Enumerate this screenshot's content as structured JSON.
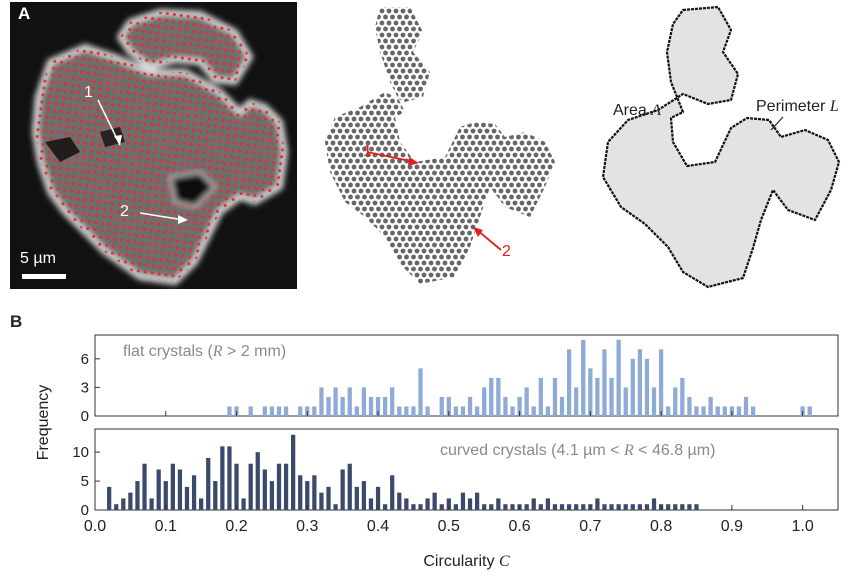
{
  "panel_a": {
    "letter": "A",
    "scalebar_label": "5 µm",
    "marker_1": "1",
    "marker_2": "2",
    "area_label": "Area",
    "area_symbol": "A",
    "perimeter_label": "Perimeter",
    "perimeter_symbol": "L"
  },
  "panel_b": {
    "letter": "B"
  },
  "colors": {
    "flat": "#8eaad6",
    "curved": "#3b4a6b",
    "marker_red": "#e02020",
    "shape_fill": "#e3e3e3"
  },
  "chart_data": [
    {
      "type": "bar",
      "legend_text_prefix": "flat crystals (",
      "legend_symbol": "R",
      "legend_text_suffix": " > 2 mm)",
      "xlim": [
        0,
        1.05
      ],
      "ylim": [
        0,
        8.5
      ],
      "yticks": [
        0,
        3,
        6
      ],
      "x": [
        0.19,
        0.2,
        0.22,
        0.24,
        0.25,
        0.26,
        0.27,
        0.29,
        0.3,
        0.31,
        0.32,
        0.33,
        0.34,
        0.35,
        0.36,
        0.37,
        0.38,
        0.39,
        0.4,
        0.41,
        0.42,
        0.43,
        0.44,
        0.45,
        0.46,
        0.47,
        0.49,
        0.5,
        0.51,
        0.52,
        0.53,
        0.54,
        0.55,
        0.56,
        0.57,
        0.58,
        0.59,
        0.6,
        0.61,
        0.62,
        0.63,
        0.64,
        0.65,
        0.66,
        0.67,
        0.68,
        0.69,
        0.7,
        0.71,
        0.72,
        0.73,
        0.74,
        0.75,
        0.76,
        0.77,
        0.78,
        0.79,
        0.8,
        0.81,
        0.82,
        0.83,
        0.84,
        0.85,
        0.86,
        0.87,
        0.88,
        0.89,
        0.9,
        0.91,
        0.92,
        0.93,
        1.0,
        1.01
      ],
      "values": [
        1,
        1,
        1,
        1,
        1,
        1,
        1,
        1,
        1,
        1,
        3,
        2,
        3,
        2,
        3,
        1,
        3,
        2,
        2,
        2,
        3,
        1,
        1,
        1,
        5,
        1,
        2,
        2,
        1,
        1,
        2,
        1,
        3,
        4,
        4,
        2,
        1,
        2,
        3,
        1,
        4,
        1,
        4,
        2,
        7,
        3,
        8,
        5,
        4,
        7,
        4,
        8,
        3,
        6,
        7,
        6,
        3,
        7,
        1,
        3,
        4,
        2,
        1,
        1,
        2,
        1,
        1,
        1,
        1,
        2,
        1,
        1,
        1
      ]
    },
    {
      "type": "bar",
      "legend_text_prefix": "curved crystals (4.1 µm < ",
      "legend_symbol": "R",
      "legend_text_suffix": " < 46.8 µm)",
      "xlim": [
        0,
        1.05
      ],
      "ylim": [
        0,
        14
      ],
      "yticks": [
        0,
        5,
        10
      ],
      "xticks": [
        "0.0",
        "0.1",
        "0.2",
        "0.3",
        "0.4",
        "0.5",
        "0.6",
        "0.7",
        "0.8",
        "0.9",
        "1.0"
      ],
      "xlabel": "Circularity",
      "xlabel_symbol": "C",
      "ylabel": "Frequency",
      "x": [
        0.02,
        0.03,
        0.04,
        0.05,
        0.06,
        0.07,
        0.08,
        0.09,
        0.1,
        0.11,
        0.12,
        0.13,
        0.14,
        0.15,
        0.16,
        0.17,
        0.18,
        0.19,
        0.2,
        0.21,
        0.22,
        0.23,
        0.24,
        0.25,
        0.26,
        0.27,
        0.28,
        0.29,
        0.3,
        0.31,
        0.32,
        0.33,
        0.34,
        0.35,
        0.36,
        0.37,
        0.38,
        0.39,
        0.4,
        0.41,
        0.42,
        0.43,
        0.44,
        0.45,
        0.46,
        0.47,
        0.48,
        0.49,
        0.5,
        0.51,
        0.52,
        0.53,
        0.54,
        0.55,
        0.56,
        0.57,
        0.58,
        0.59,
        0.6,
        0.61,
        0.62,
        0.63,
        0.64,
        0.65,
        0.66,
        0.67,
        0.68,
        0.69,
        0.7,
        0.71,
        0.72,
        0.73,
        0.74,
        0.75,
        0.76,
        0.77,
        0.78,
        0.79,
        0.8,
        0.81,
        0.82,
        0.83,
        0.84,
        0.85
      ],
      "values": [
        4,
        1,
        2,
        3,
        5,
        8,
        2,
        7,
        5,
        8,
        7,
        4,
        6,
        2,
        9,
        5,
        11,
        11,
        8,
        2,
        8,
        10,
        7,
        5,
        8,
        8,
        13,
        6,
        5,
        6,
        3,
        4,
        1,
        7,
        8,
        4,
        5,
        2,
        4,
        1,
        6,
        3,
        2,
        1,
        1,
        2,
        3,
        1,
        2,
        1,
        3,
        2,
        3,
        1,
        1,
        2,
        1,
        1,
        1,
        1,
        2,
        1,
        2,
        1,
        1,
        1,
        1,
        1,
        1,
        2,
        1,
        1,
        1,
        1,
        1,
        1,
        1,
        2,
        1,
        1,
        1,
        1,
        1,
        1
      ]
    }
  ]
}
